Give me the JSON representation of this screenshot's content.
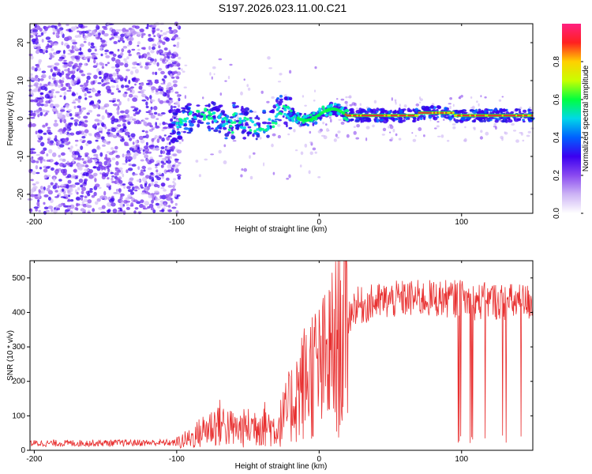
{
  "title": "S197.2026.023.11.00.C21",
  "colors": {
    "snr_line": "#e83030",
    "axis": "#000000",
    "carrier": "#e8303a",
    "colormap": [
      "#ffffff",
      "#cdb4f5",
      "#8a4af0",
      "#3b00f0",
      "#0060ff",
      "#00d8e8",
      "#00ff40",
      "#c8ff00",
      "#ffd000",
      "#ff2020",
      "#ff2080"
    ]
  },
  "chart_data": [
    {
      "type": "heatmap",
      "name": "spectrogram",
      "title": "S197.2026.023.11.00.C21",
      "xlabel": "Height of straight line (km)",
      "ylabel": "Frequency (Hz)",
      "xlim": [
        -203,
        150
      ],
      "ylim": [
        -25,
        25
      ],
      "xticks": [
        -200,
        -100,
        0,
        100
      ],
      "yticks": [
        -20,
        -10,
        0,
        10,
        20
      ],
      "colorbar": {
        "label": "Normalized spectral amplitude",
        "range": [
          0,
          1
        ],
        "ticks": [
          "0.0",
          "0.2",
          "0.4",
          "0.6",
          "0.8"
        ]
      }
    },
    {
      "type": "line",
      "name": "snr",
      "xlabel": "Height of straight line (km)",
      "ylabel": "SNR (10 * v/v)",
      "xlim": [
        -203,
        150
      ],
      "ylim": [
        0,
        550
      ],
      "xticks": [
        -200,
        -100,
        0,
        100
      ],
      "yticks": [
        0,
        100,
        200,
        300,
        400,
        500
      ],
      "trend": {
        "x": [
          -203,
          -110,
          -100,
          -90,
          -80,
          -70,
          -60,
          -50,
          -40,
          -30,
          -20,
          -15,
          -10,
          -5,
          0,
          5,
          10,
          15,
          20,
          25,
          30,
          40,
          50,
          60,
          70,
          80,
          90,
          100,
          110,
          120,
          130,
          140,
          150
        ],
        "y": [
          20,
          22,
          22,
          35,
          60,
          80,
          60,
          65,
          80,
          60,
          130,
          170,
          200,
          230,
          230,
          250,
          290,
          320,
          380,
          420,
          420,
          430,
          435,
          440,
          440,
          440,
          440,
          440,
          430,
          435,
          430,
          430,
          430
        ]
      },
      "dropouts_after_x": 95
    }
  ]
}
